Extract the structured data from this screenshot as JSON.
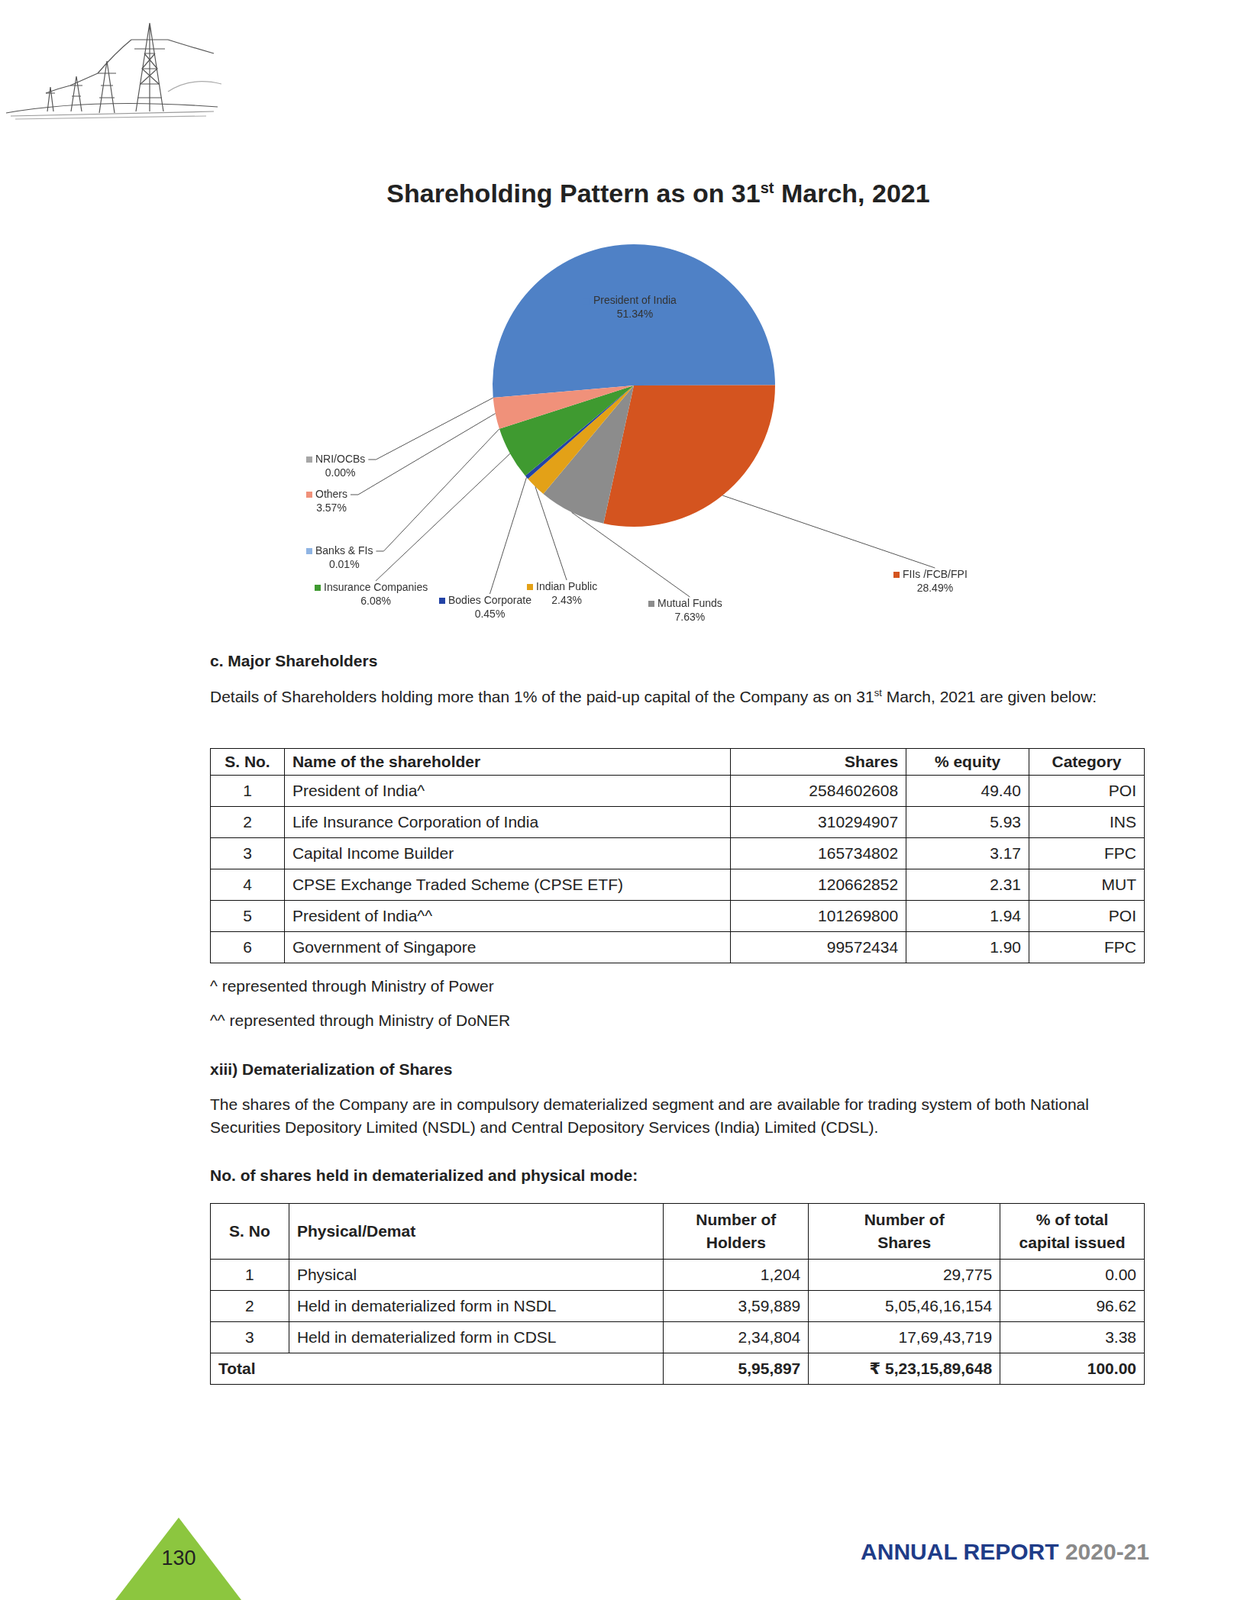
{
  "chart_data": {
    "type": "pie",
    "title": "Shareholding Pattern as on 31st March, 2021",
    "categories": [
      "President of India",
      "FIIs /FCB/FPI",
      "Mutual Funds",
      "Indian Public",
      "Bodies Corporate",
      "Insurance Companies",
      "Banks & FIs",
      "Others",
      "NRI/OCBs"
    ],
    "values": [
      51.34,
      28.49,
      7.63,
      2.43,
      0.45,
      6.08,
      0.01,
      3.57,
      0.0
    ],
    "value_labels": [
      "51.34%",
      "28.49%",
      "7.63%",
      "2.43%",
      "0.45%",
      "6.08%",
      "0.01%",
      "3.57%",
      "0.00%"
    ],
    "colors": [
      "#4f81c6",
      "#d4541f",
      "#8c8c8c",
      "#e3a117",
      "#2343a6",
      "#3f9a30",
      "#8fb4e3",
      "#f0917a",
      "#a6a6a6"
    ],
    "data_labels": true
  },
  "major_shareholders": {
    "heading": "c. Major Shareholders",
    "text": "Details of Shareholders holding more than 1% of the paid-up capital of the Company as on 31st March, 2021 are given below:",
    "table": {
      "columns": [
        "S. No.",
        "Name of the shareholder",
        "Shares",
        "% equity",
        "Category"
      ],
      "rows": [
        [
          "1",
          "President of India^",
          "2584602608",
          "49.40",
          "POI"
        ],
        [
          "2",
          "Life Insurance Corporation of India",
          "310294907",
          "5.93",
          "INS"
        ],
        [
          "3",
          "Capital Income Builder",
          "165734802",
          "3.17",
          "FPC"
        ],
        [
          "4",
          "CPSE Exchange Traded Scheme (CPSE ETF)",
          "120662852",
          "2.31",
          "MUT"
        ],
        [
          "5",
          "President of India^^",
          "101269800",
          "1.94",
          "POI"
        ],
        [
          "6",
          "Government of Singapore",
          "99572434",
          "1.90",
          "FPC"
        ]
      ]
    },
    "notes": [
      "^ represented through Ministry of Power",
      "^^ represented through Ministry of DoNER"
    ]
  },
  "dematerialization": {
    "heading": "xiii) Dematerialization of Shares",
    "text": "The shares of the Company are in compulsory dematerialized segment and are available for trading system of both National Securities Depository Limited (NSDL) and Central Depository Services (India) Limited (CDSL).",
    "subheading": "No. of shares held in dematerialized and physical mode:",
    "table": {
      "columns": [
        "S. No",
        "Physical/Demat",
        "Number of Holders",
        "Number of Shares",
        "% of total capital issued"
      ],
      "rows": [
        [
          "1",
          "Physical",
          "1,204",
          "29,775",
          "0.00"
        ],
        [
          "2",
          "Held in dematerialized form in NSDL",
          "3,59,889",
          "5,05,46,16,154",
          "96.62"
        ],
        [
          "3",
          "Held in dematerialized form in CDSL",
          "2,34,804",
          "17,69,43,719",
          "3.38"
        ]
      ],
      "total": [
        "Total",
        "5,95,897",
        "₹ 5,23,15,89,648",
        "100.00"
      ]
    }
  },
  "page": {
    "number": "130",
    "footer": [
      "ANNUAL REPORT",
      "2020-21"
    ]
  }
}
